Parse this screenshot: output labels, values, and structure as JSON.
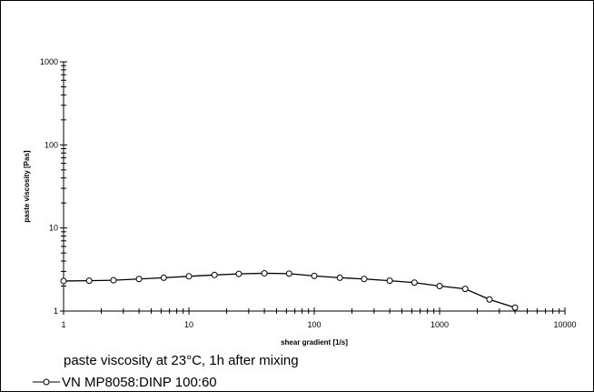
{
  "chart_data": {
    "type": "line",
    "title": "",
    "xlabel": "shear gradient  [1/s]",
    "ylabel": "paste viscosity  [Pas]",
    "xscale": "log",
    "yscale": "log",
    "xlim": [
      1,
      10000
    ],
    "ylim": [
      1,
      1000
    ],
    "x_ticks": [
      "1",
      "10",
      "100",
      "1000",
      "10000"
    ],
    "y_ticks": [
      "1",
      "10",
      "100",
      "1000"
    ],
    "grid": false,
    "legend_position": "bottom-left",
    "caption": "paste viscosity at 23°C, 1h after mixing",
    "series": [
      {
        "name": "VN  MP8058:DINP  100:60",
        "marker": "open-circle",
        "color": "#000000",
        "x": [
          1,
          1.6,
          2.5,
          4,
          6.3,
          10,
          16,
          25,
          40,
          63,
          100,
          160,
          250,
          400,
          630,
          1000,
          1600,
          2500,
          4000
        ],
        "y": [
          2.3,
          2.32,
          2.35,
          2.43,
          2.52,
          2.62,
          2.72,
          2.8,
          2.85,
          2.82,
          2.65,
          2.52,
          2.43,
          2.32,
          2.2,
          2.0,
          1.85,
          1.38,
          1.1
        ]
      }
    ]
  }
}
